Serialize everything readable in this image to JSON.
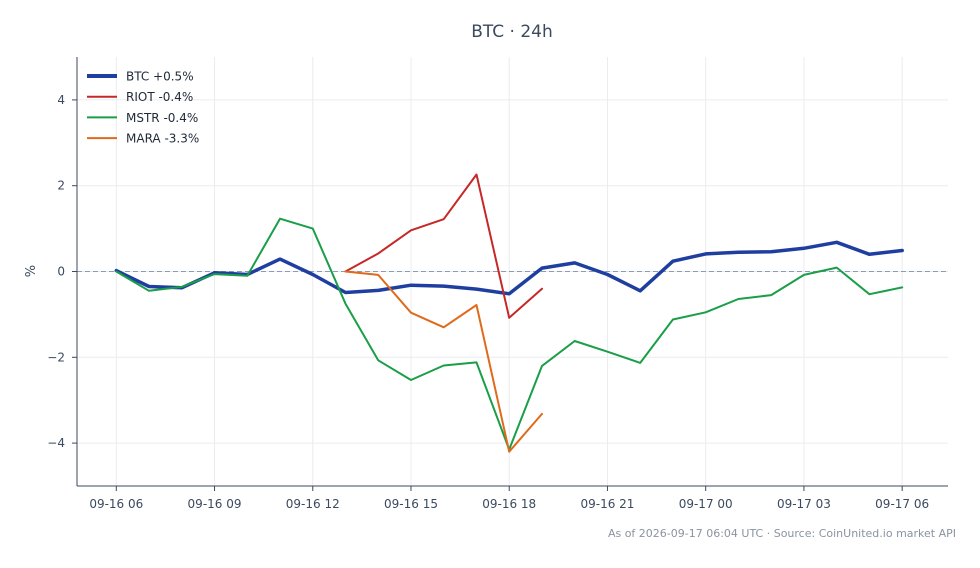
{
  "chart_data": {
    "type": "line",
    "title": "BTC · 24h",
    "xlabel": "",
    "ylabel": "%",
    "x_tick_labels": [
      "09-16 06",
      "09-16 09",
      "09-16 12",
      "09-16 15",
      "09-16 18",
      "09-16 21",
      "09-17 00",
      "09-17 03",
      "09-17 06"
    ],
    "x_range_hours": [
      -1.2,
      25.4
    ],
    "x_tick_hours": [
      0,
      3,
      6,
      9,
      12,
      15,
      18,
      21,
      24
    ],
    "y_ticks": [
      -4,
      -2,
      0,
      2,
      4
    ],
    "y_tick_labels": [
      "−4",
      "−2",
      "0",
      "2",
      "4"
    ],
    "ylim": [
      -5,
      5
    ],
    "grid": true,
    "legend_position": "top-left",
    "zero_line": true,
    "series": [
      {
        "name": "BTC +0.5%",
        "color": "#1f3fa0",
        "width": "thick",
        "points": [
          [
            0,
            0.02
          ],
          [
            1,
            -0.35
          ],
          [
            2,
            -0.38
          ],
          [
            3,
            -0.03
          ],
          [
            4,
            -0.07
          ],
          [
            5,
            0.29
          ],
          [
            6,
            -0.07
          ],
          [
            7,
            -0.49
          ],
          [
            8,
            -0.44
          ],
          [
            9,
            -0.32
          ],
          [
            10,
            -0.34
          ],
          [
            11,
            -0.41
          ],
          [
            12,
            -0.52
          ],
          [
            13,
            0.08
          ],
          [
            14,
            0.2
          ],
          [
            15,
            -0.07
          ],
          [
            16,
            -0.45
          ],
          [
            17,
            0.24
          ],
          [
            18,
            0.41
          ],
          [
            19,
            0.45
          ],
          [
            20,
            0.46
          ],
          [
            21,
            0.54
          ],
          [
            22,
            0.68
          ],
          [
            23,
            0.4
          ],
          [
            24,
            0.49
          ]
        ]
      },
      {
        "name": "RIOT -0.4%",
        "color": "#c62828",
        "width": "normal",
        "points": [
          [
            7,
            0.0
          ],
          [
            8,
            0.42
          ],
          [
            9,
            0.96
          ],
          [
            10,
            1.22
          ],
          [
            11,
            2.26
          ],
          [
            12,
            -1.08
          ],
          [
            13,
            -0.4
          ]
        ]
      },
      {
        "name": "MSTR -0.4%",
        "color": "#1a9e48",
        "width": "normal",
        "points": [
          [
            0,
            0.0
          ],
          [
            1,
            -0.45
          ],
          [
            2,
            -0.36
          ],
          [
            3,
            -0.06
          ],
          [
            4,
            -0.1
          ],
          [
            5,
            1.23
          ],
          [
            6,
            1.0
          ],
          [
            7,
            -0.75
          ],
          [
            8,
            -2.07
          ],
          [
            9,
            -2.53
          ],
          [
            10,
            -2.19
          ],
          [
            11,
            -2.12
          ],
          [
            12,
            -4.15
          ],
          [
            13,
            -2.2
          ],
          [
            14,
            -1.62
          ],
          [
            15,
            -1.87
          ],
          [
            16,
            -2.13
          ],
          [
            17,
            -1.12
          ],
          [
            18,
            -0.95
          ],
          [
            19,
            -0.64
          ],
          [
            20,
            -0.55
          ],
          [
            21,
            -0.08
          ],
          [
            22,
            0.09
          ],
          [
            23,
            -0.53
          ],
          [
            24,
            -0.37
          ]
        ]
      },
      {
        "name": "MARA -3.3%",
        "color": "#e06a1b",
        "width": "normal",
        "points": [
          [
            7,
            0.0
          ],
          [
            8,
            -0.08
          ],
          [
            9,
            -0.96
          ],
          [
            10,
            -1.3
          ],
          [
            11,
            -0.78
          ],
          [
            12,
            -4.2
          ],
          [
            13,
            -3.32
          ]
        ]
      }
    ],
    "footnote": "As of 2026-09-17 06:04 UTC · Source: CoinUnited.io market API"
  }
}
